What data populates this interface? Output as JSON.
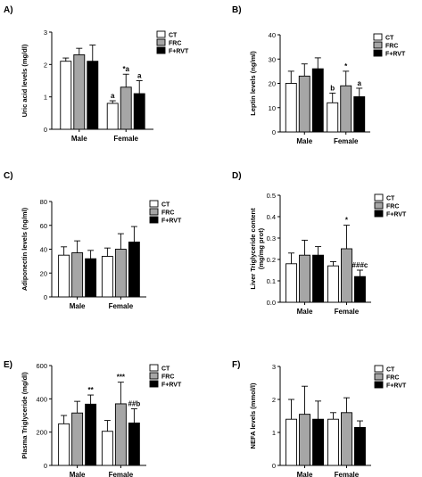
{
  "colors": {
    "CT": "#ffffff",
    "FRC": "#a6a6a6",
    "F+RVT": "#000000"
  },
  "legend_entries": [
    "CT",
    "FRC",
    "F+RVT"
  ],
  "chart_data": [
    {
      "panel": "A)",
      "type": "bar",
      "ylabel": "Uric acid levels (mg/dl)",
      "xlabel": "",
      "ylim": [
        0,
        3
      ],
      "yticks": [
        "0",
        "1",
        "2",
        "3"
      ],
      "categories": [
        "Male",
        "Female"
      ],
      "series": [
        {
          "name": "CT",
          "values": [
            2.1,
            0.8
          ],
          "errors": [
            0.1,
            0.08
          ],
          "annotations": [
            "",
            "a"
          ]
        },
        {
          "name": "FRC",
          "values": [
            2.3,
            1.3
          ],
          "errors": [
            0.2,
            0.4
          ],
          "annotations": [
            "",
            "*a"
          ]
        },
        {
          "name": "F+RVT",
          "values": [
            2.1,
            1.1
          ],
          "errors": [
            0.5,
            0.4
          ],
          "annotations": [
            "",
            "a"
          ]
        }
      ]
    },
    {
      "panel": "B)",
      "type": "bar",
      "ylabel": "Leptin levels (ng/ml)",
      "xlabel": "",
      "ylim": [
        0,
        40
      ],
      "yticks": [
        "0",
        "10",
        "20",
        "30",
        "40"
      ],
      "categories": [
        "Male",
        "Female"
      ],
      "series": [
        {
          "name": "CT",
          "values": [
            20,
            12
          ],
          "errors": [
            5,
            4
          ],
          "annotations": [
            "",
            "b"
          ]
        },
        {
          "name": "FRC",
          "values": [
            23,
            19
          ],
          "errors": [
            5,
            6
          ],
          "annotations": [
            "",
            "*"
          ]
        },
        {
          "name": "F+RVT",
          "values": [
            26,
            14.5
          ],
          "errors": [
            4.5,
            3.5
          ],
          "annotations": [
            "",
            "a"
          ]
        }
      ]
    },
    {
      "panel": "C)",
      "type": "bar",
      "ylabel": "Adiponectin levels (ng/ml)",
      "xlabel": "",
      "ylim": [
        0,
        80
      ],
      "yticks": [
        "0",
        "20",
        "40",
        "60",
        "80"
      ],
      "categories": [
        "Male",
        "Female"
      ],
      "series": [
        {
          "name": "CT",
          "values": [
            35,
            34
          ],
          "errors": [
            7,
            7
          ],
          "annotations": [
            "",
            ""
          ]
        },
        {
          "name": "FRC",
          "values": [
            37,
            40
          ],
          "errors": [
            10,
            13
          ],
          "annotations": [
            "",
            ""
          ]
        },
        {
          "name": "F+RVT",
          "values": [
            32,
            46
          ],
          "errors": [
            7,
            13
          ],
          "annotations": [
            "",
            ""
          ]
        }
      ]
    },
    {
      "panel": "D)",
      "type": "bar",
      "ylabel": "Liver Triglyceride content",
      "ylabel2": "(mg/mg prot)",
      "xlabel": "",
      "ylim": [
        0,
        0.5
      ],
      "yticks": [
        "0.0",
        "0.1",
        "0.2",
        "0.3",
        "0.4",
        "0.5"
      ],
      "categories": [
        "Male",
        "Female"
      ],
      "series": [
        {
          "name": "CT",
          "values": [
            0.18,
            0.17
          ],
          "errors": [
            0.05,
            0.02
          ],
          "annotations": [
            "",
            ""
          ]
        },
        {
          "name": "FRC",
          "values": [
            0.22,
            0.25
          ],
          "errors": [
            0.07,
            0.11
          ],
          "annotations": [
            "",
            "*"
          ]
        },
        {
          "name": "F+RVT",
          "values": [
            0.22,
            0.12
          ],
          "errors": [
            0.04,
            0.03
          ],
          "annotations": [
            "",
            "###c"
          ]
        }
      ]
    },
    {
      "panel": "E)",
      "type": "bar",
      "ylabel": "Plasma Triglyceride (mg/dl)",
      "xlabel": "",
      "ylim": [
        0,
        600
      ],
      "yticks": [
        "0",
        "200",
        "400",
        "600"
      ],
      "categories": [
        "Male",
        "Female"
      ],
      "series": [
        {
          "name": "CT",
          "values": [
            250,
            205
          ],
          "errors": [
            50,
            65
          ],
          "annotations": [
            "",
            ""
          ]
        },
        {
          "name": "FRC",
          "values": [
            315,
            370
          ],
          "errors": [
            70,
            130
          ],
          "annotations": [
            "",
            "***"
          ]
        },
        {
          "name": "F+RVT",
          "values": [
            368,
            255
          ],
          "errors": [
            55,
            85
          ],
          "annotations": [
            "**",
            "##b"
          ]
        }
      ]
    },
    {
      "panel": "F)",
      "type": "bar",
      "ylabel": "NEFA levels (mmol/l)",
      "xlabel": "",
      "ylim": [
        0,
        3
      ],
      "yticks": [
        "0",
        "1",
        "2",
        "3"
      ],
      "categories": [
        "Male",
        "Female"
      ],
      "series": [
        {
          "name": "CT",
          "values": [
            1.4,
            1.4
          ],
          "errors": [
            0.6,
            0.2
          ],
          "annotations": [
            "",
            ""
          ]
        },
        {
          "name": "FRC",
          "values": [
            1.55,
            1.6
          ],
          "errors": [
            0.85,
            0.45
          ],
          "annotations": [
            "",
            ""
          ]
        },
        {
          "name": "F+RVT",
          "values": [
            1.4,
            1.15
          ],
          "errors": [
            0.55,
            0.2
          ],
          "annotations": [
            "",
            ""
          ]
        }
      ]
    }
  ]
}
